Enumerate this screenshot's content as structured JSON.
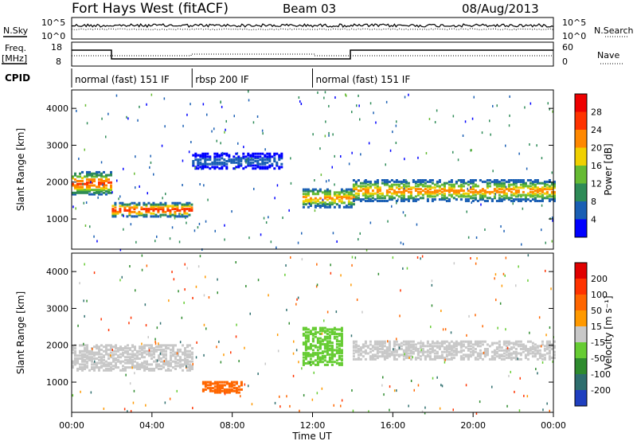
{
  "header": {
    "title": "Fort Hays West (fitACF)",
    "beam": "Beam 03",
    "date": "08/Aug/2013"
  },
  "strip_labels": {
    "nsky": "N.Sky",
    "nsearch": "N.Search",
    "freq_line1": "Freq.",
    "freq_line2": "[MHz]",
    "nave": "Nave",
    "cpid": "CPID"
  },
  "noise_panel": {
    "left_ticks": [
      "10^5",
      "10^0"
    ],
    "right_ticks": [
      "10^5",
      "10^0"
    ]
  },
  "freq_panel": {
    "left_ticks": [
      "18",
      "8"
    ],
    "right_ticks": [
      "60",
      "0"
    ]
  },
  "cpid_segments": [
    {
      "label": "normal (fast) 151 IF",
      "start_hour": 0,
      "end_hour": 6
    },
    {
      "label": "rbsp 200 IF",
      "start_hour": 6,
      "end_hour": 12
    },
    {
      "label": "normal (fast) 151 IF",
      "start_hour": 12,
      "end_hour": 24
    }
  ],
  "x_axis": {
    "label": "Time UT",
    "ticks": [
      "00:00",
      "04:00",
      "08:00",
      "12:00",
      "16:00",
      "20:00",
      "00:00"
    ]
  },
  "power_panel": {
    "ylabel": "Slant Range [km]",
    "yticks": [
      "1000",
      "2000",
      "3000",
      "4000"
    ],
    "colorbar_label": "Power [dB]",
    "colorbar_ticks": [
      "4",
      "8",
      "12",
      "16",
      "20",
      "24",
      "28"
    ],
    "colorbar_colors": [
      "#0000ff",
      "#1a5fb4",
      "#2e8b57",
      "#66bb33",
      "#f0d000",
      "#ff8800",
      "#ff3300",
      "#ee0000"
    ]
  },
  "velocity_panel": {
    "ylabel": "Slant Range [km]",
    "yticks": [
      "1000",
      "2000",
      "3000",
      "4000"
    ],
    "colorbar_label": "Velocity [m s⁻¹]",
    "colorbar_ticks": [
      "200",
      "100",
      "50",
      "15",
      "-15",
      "-50",
      "-100",
      "-200"
    ],
    "colorbar_colors": [
      "#1f3fbf",
      "#2e6e6e",
      "#2e8b2e",
      "#66cc33",
      "#c8c8c8",
      "#ff9900",
      "#ff6600",
      "#ff3300",
      "#e00000"
    ]
  },
  "chart_data": {
    "type": "heatmap",
    "x_range_hours": [
      0,
      24
    ],
    "y_range_km": [
      180,
      4500
    ],
    "panels": [
      {
        "name": "Power",
        "units": "dB",
        "scale": [
          0,
          30
        ],
        "bands": [
          {
            "start_hour": 0.0,
            "end_hour": 2.0,
            "center_km": 2000,
            "half_width_km": 300,
            "peak": 26
          },
          {
            "start_hour": 2.0,
            "end_hour": 6.0,
            "center_km": 1280,
            "half_width_km": 180,
            "peak": 28
          },
          {
            "start_hour": 6.0,
            "end_hour": 10.5,
            "center_km": 2600,
            "half_width_km": 200,
            "peak": 6
          },
          {
            "start_hour": 11.5,
            "end_hour": 14.0,
            "center_km": 1600,
            "half_width_km": 250,
            "peak": 22
          },
          {
            "start_hour": 14.0,
            "end_hour": 24.0,
            "center_km": 1800,
            "half_width_km": 280,
            "peak": 22
          }
        ]
      },
      {
        "name": "Velocity",
        "units": "m s^-1",
        "scale": [
          -200,
          200
        ],
        "bands": [
          {
            "start_hour": 0.0,
            "end_hour": 6.0,
            "center_km": 1700,
            "half_width_km": 350,
            "value": 0
          },
          {
            "start_hour": 6.5,
            "end_hour": 8.5,
            "center_km": 900,
            "half_width_km": 150,
            "value": -80
          },
          {
            "start_hour": 11.5,
            "end_hour": 13.5,
            "center_km": 2000,
            "half_width_km": 500,
            "value": 40
          },
          {
            "start_hour": 14.0,
            "end_hour": 24.0,
            "center_km": 1900,
            "half_width_km": 250,
            "value": 0
          }
        ]
      }
    ]
  }
}
